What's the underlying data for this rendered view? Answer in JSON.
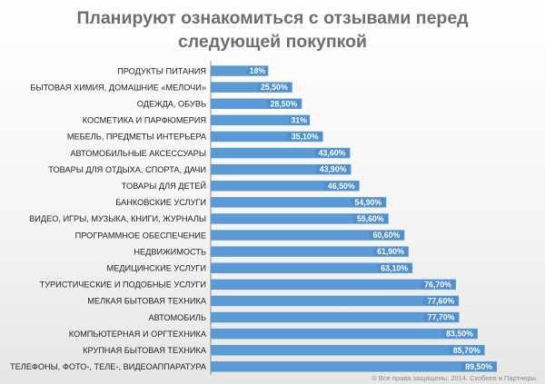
{
  "title_line1": "Планируют ознакомиться с отзывами перед",
  "title_line2": "следующей покупкой",
  "copyright": "© Все права защищены. 2014. Скобеев и Партнеры.",
  "colors": {
    "bar": "#5b9bd5",
    "bar_label_bg": "#4f8fcf",
    "axis": "#8c8c8c"
  },
  "chart_data": {
    "type": "bar",
    "orientation": "horizontal",
    "title": "Планируют ознакомиться с отзывами перед следующей покупкой",
    "xlim": [
      0,
      100
    ],
    "grid": false,
    "categories": [
      "ПРОДУКТЫ ПИТАНИЯ",
      "БЫТОВАЯ ХИМИЯ, ДОМАШНИЕ «МЕЛОЧИ»",
      "ОДЕЖДА, ОБУВЬ",
      "КОСМЕТИКА И ПАРФЮМЕРИЯ",
      "МЕБЕЛЬ, ПРЕДМЕТЫ ИНТЕРЬЕРА",
      "АВТОМОБИЛЬНЫЕ АКСЕССУАРЫ",
      "ТОВАРЫ ДЛЯ ОТДЫХА, СПОРТА, ДАЧИ",
      "ТОВАРЫ ДЛЯ ДЕТЕЙ",
      "БАНКОВСКИЕ УСЛУГИ",
      "ВИДЕО, ИГРЫ, МУЗЫКА, КНИГИ, ЖУРНАЛЫ",
      "ПРОГРАММНОЕ ОБЕСПЕЧЕНИЕ",
      "НЕДВИЖИМОСТЬ",
      "МЕДИЦИНСКИЕ УСЛУГИ",
      "ТУРИСТИЧЕСКИЕ И ПОДОБНЫЕ УСЛУГИ",
      "МЕЛКАЯ БЫТОВАЯ ТЕХНИКА",
      "АВТОМОБИЛЬ",
      "КОМПЬЮТЕРНАЯ И ОРГТЕХНИКА",
      "КРУПНАЯ БЫТОВАЯ ТЕХНИКА",
      "ТЕЛЕФОНЫ, ФОТО-, ТЕЛЕ-, ВИДЕОАППАРАТУРА"
    ],
    "values": [
      18,
      25.5,
      28.5,
      31,
      35.1,
      43.6,
      43.9,
      46.5,
      54.9,
      55.6,
      60.6,
      61.9,
      63.1,
      76.7,
      77.6,
      77.7,
      83.5,
      85.7,
      89.5
    ],
    "value_labels": [
      "18%",
      "25,50%",
      "28,50%",
      "31%",
      "35,10%",
      "43,60%",
      "43,90%",
      "46,50%",
      "54,90%",
      "55,60%",
      "60,60%",
      "61,90%",
      "63,10%",
      "76,70%",
      "77,60%",
      "77,70%",
      "83,50%",
      "85,70%",
      "89,50%"
    ]
  }
}
